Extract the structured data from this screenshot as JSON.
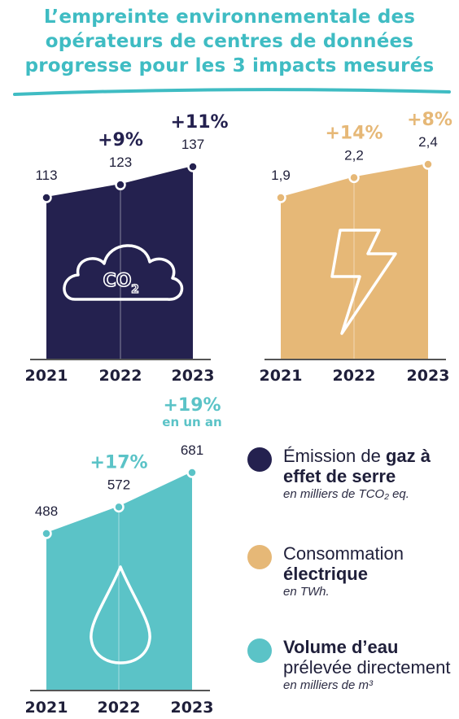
{
  "title": {
    "line1": "L’empreinte environnementale des",
    "line2": "opérateurs de centres de données",
    "line3": "progresse pour les 3 impacts mesurés"
  },
  "colors": {
    "title": "#3fbcc3",
    "gas": "#24214f",
    "elec": "#e6b877",
    "water": "#5bc3c7",
    "text": "#1f1f3a"
  },
  "chart_data": [
    {
      "type": "area",
      "id": "gas",
      "icon": "co2-cloud-icon",
      "icon_text": "CO2",
      "categories": [
        "2021",
        "2022",
        "2023"
      ],
      "values": [
        113,
        123,
        137
      ],
      "value_labels": [
        "113",
        "123",
        "137"
      ],
      "changes": [
        "",
        "+9%",
        "+11%"
      ],
      "change_note": ""
    },
    {
      "type": "area",
      "id": "elec",
      "icon": "lightning-icon",
      "categories": [
        "2021",
        "2022",
        "2023"
      ],
      "values": [
        1.9,
        2.2,
        2.4
      ],
      "value_labels": [
        "1,9",
        "2,2",
        "2,4"
      ],
      "changes": [
        "",
        "+14%",
        "+8%"
      ],
      "change_note": ""
    },
    {
      "type": "area",
      "id": "water",
      "icon": "water-drop-icon",
      "categories": [
        "2021",
        "2022",
        "2023"
      ],
      "values": [
        488,
        572,
        681
      ],
      "value_labels": [
        "488",
        "572",
        "681"
      ],
      "changes": [
        "",
        "+17%",
        "+19%"
      ],
      "change_note": "en un an"
    }
  ],
  "legend": [
    {
      "pre": "Émission de ",
      "bold": "gaz à effet de serre",
      "post": "",
      "unit": "en milliers de TCO₂ eq.",
      "color": "#24214f"
    },
    {
      "pre": "Consommation ",
      "bold": "électrique",
      "post": "",
      "unit": "en TWh.",
      "color": "#e6b877"
    },
    {
      "pre": "",
      "bold": "Volume d’eau",
      "post": " prélevée directement",
      "unit": "en milliers de m³",
      "color": "#5bc3c7"
    }
  ]
}
